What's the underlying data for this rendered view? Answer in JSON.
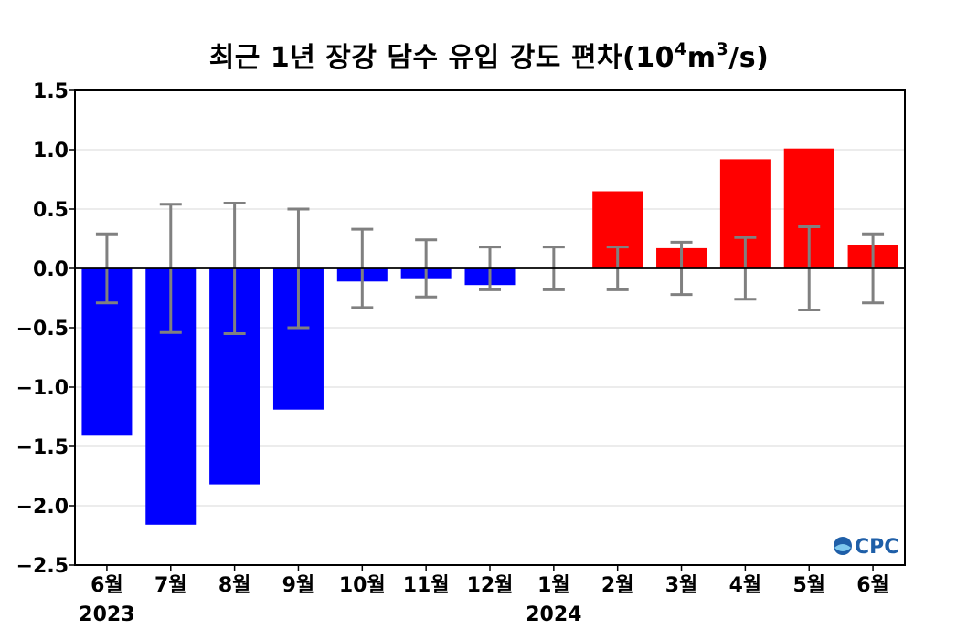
{
  "chart_data": {
    "type": "bar",
    "title": "최근 1년 장강 담수 유입 강도 편차",
    "title_unit": {
      "open": "(10",
      "sup1": "4",
      "mid": "m",
      "sup2": "3",
      "close": "/s)"
    },
    "categories": [
      "6월",
      "7월",
      "8월",
      "9월",
      "10월",
      "11월",
      "12월",
      "1월",
      "2월",
      "3월",
      "4월",
      "5월",
      "6월"
    ],
    "year_labels": [
      {
        "text": "2023",
        "category_index": 0
      },
      {
        "text": "2024",
        "category_index": 7
      }
    ],
    "values": [
      -1.41,
      -2.16,
      -1.82,
      -1.19,
      -0.11,
      -0.09,
      -0.14,
      0.0,
      0.65,
      0.17,
      0.92,
      1.01,
      0.2
    ],
    "error_bars": [
      0.29,
      0.54,
      0.55,
      0.5,
      0.33,
      0.24,
      0.18,
      0.18,
      0.18,
      0.22,
      0.26,
      0.35,
      0.29
    ],
    "ylim": [
      -2.5,
      1.5
    ],
    "yticks": [
      -2.5,
      -2.0,
      -1.5,
      -1.0,
      -0.5,
      0.0,
      0.5,
      1.0,
      1.5
    ],
    "ytick_labels": [
      "−2.5",
      "−2.0",
      "−1.5",
      "−1.0",
      "−0.5",
      "0.0",
      "0.5",
      "1.0",
      "1.5"
    ],
    "grid": "horizontal",
    "colors": {
      "positive": "#ff0000",
      "negative": "#0000ff",
      "error_bar": "#808080",
      "grid": "#d9d9d9"
    }
  },
  "logo": {
    "text": "CPC",
    "color": "#1f5fa8"
  }
}
